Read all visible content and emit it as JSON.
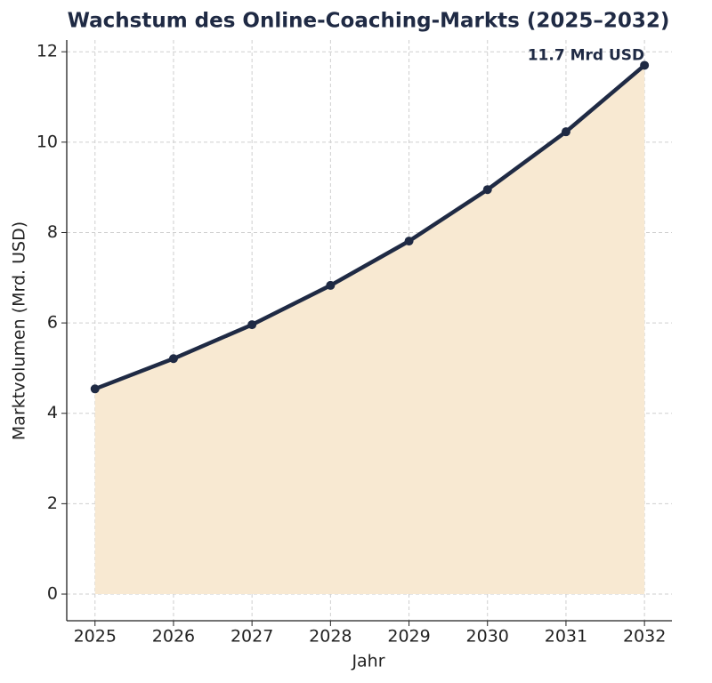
{
  "chart_data": {
    "type": "area-line",
    "title": "Wachstum des Online-Coaching-Markts (2025–2032)",
    "x_label": "Jahr",
    "y_label": "Marktvolumen (Mrd. USD)",
    "x": [
      2025,
      2026,
      2027,
      2028,
      2029,
      2030,
      2031,
      2032
    ],
    "series": [
      {
        "name": "Marktvolumen",
        "color": "#1f2a44",
        "fill": "#f8e9d2",
        "values": [
          4.54,
          5.21,
          5.96,
          6.83,
          7.81,
          8.95,
          10.23,
          11.7
        ]
      }
    ],
    "annotation": "11.7 Mrd USD",
    "xlim": [
      2024.64,
      2032.35
    ],
    "xticks": [
      2025,
      2026,
      2027,
      2028,
      2029,
      2030,
      2031,
      2032
    ],
    "ylim": [
      -0.59,
      12.26
    ],
    "yticks": [
      0,
      2,
      4,
      6,
      8,
      10,
      12
    ],
    "grid": true
  }
}
